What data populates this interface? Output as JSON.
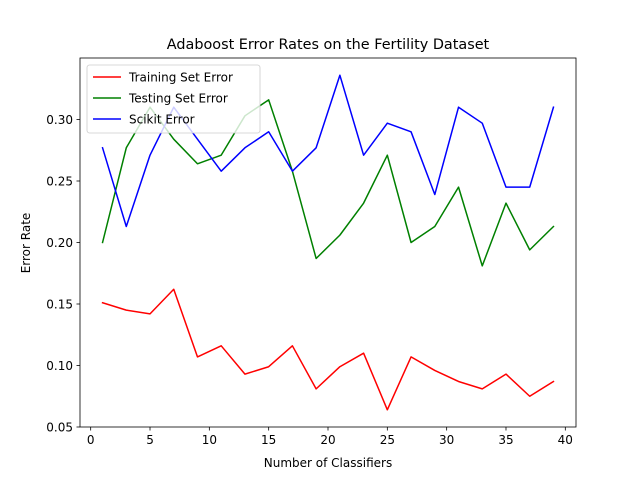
{
  "chart_data": {
    "type": "line",
    "title": "Adaboost Error Rates on the Fertility Dataset",
    "xlabel": "Number of Classifiers",
    "ylabel": "Error Rate",
    "xlim": [
      -0.9,
      40.9
    ],
    "ylim": [
      0.05,
      0.35
    ],
    "xticks": [
      0,
      5,
      10,
      15,
      20,
      25,
      30,
      35,
      40
    ],
    "yticks": [
      0.05,
      0.1,
      0.15,
      0.2,
      0.25,
      0.3
    ],
    "ytick_labels": [
      "0.05",
      "0.10",
      "0.15",
      "0.20",
      "0.25",
      "0.30"
    ],
    "grid": false,
    "legend_position": "top-left",
    "x": [
      1,
      3,
      5,
      7,
      9,
      11,
      13,
      15,
      17,
      19,
      21,
      23,
      25,
      27,
      29,
      31,
      33,
      35,
      37,
      39
    ],
    "series": [
      {
        "name": "Training Set Error",
        "color": "#ff0000",
        "values": [
          0.151,
          0.145,
          0.142,
          0.162,
          0.107,
          0.116,
          0.093,
          0.099,
          0.116,
          0.081,
          0.099,
          0.11,
          0.064,
          0.107,
          0.096,
          0.087,
          0.081,
          0.093,
          0.075,
          0.087
        ]
      },
      {
        "name": "Testing Set Error",
        "color": "#008000",
        "values": [
          0.2,
          0.277,
          0.31,
          0.284,
          0.264,
          0.271,
          0.303,
          0.316,
          0.258,
          0.187,
          0.206,
          0.232,
          0.271,
          0.2,
          0.213,
          0.245,
          0.181,
          0.232,
          0.194,
          0.213
        ]
      },
      {
        "name": "Scikit Error",
        "color": "#0000ff",
        "values": [
          0.277,
          0.213,
          0.271,
          0.31,
          0.284,
          0.258,
          0.277,
          0.29,
          0.258,
          0.277,
          0.336,
          0.271,
          0.297,
          0.29,
          0.239,
          0.31,
          0.297,
          0.245,
          0.245,
          0.31
        ]
      }
    ]
  }
}
